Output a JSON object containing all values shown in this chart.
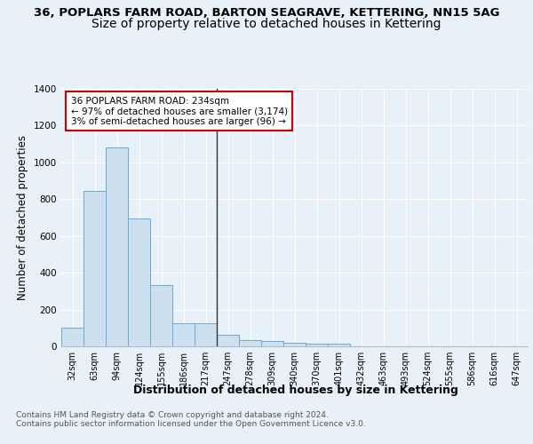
{
  "title_line1": "36, POPLARS FARM ROAD, BARTON SEAGRAVE, KETTERING, NN15 5AG",
  "title_line2": "Size of property relative to detached houses in Kettering",
  "xlabel": "Distribution of detached houses by size in Kettering",
  "ylabel": "Number of detached properties",
  "categories": [
    "32sqm",
    "63sqm",
    "94sqm",
    "124sqm",
    "155sqm",
    "186sqm",
    "217sqm",
    "247sqm",
    "278sqm",
    "309sqm",
    "340sqm",
    "370sqm",
    "401sqm",
    "432sqm",
    "463sqm",
    "493sqm",
    "524sqm",
    "555sqm",
    "586sqm",
    "616sqm",
    "647sqm"
  ],
  "values": [
    100,
    845,
    1080,
    693,
    335,
    125,
    125,
    65,
    33,
    28,
    18,
    14,
    14,
    0,
    0,
    0,
    0,
    0,
    0,
    0,
    0
  ],
  "bar_color": "#cce0f0",
  "bar_edge_color": "#6aaad4",
  "vline_x_idx": 7,
  "vline_color": "#333333",
  "annotation_text": "36 POPLARS FARM ROAD: 234sqm\n← 97% of detached houses are smaller (3,174)\n3% of semi-detached houses are larger (96) →",
  "annotation_box_color": "#ffffff",
  "annotation_box_edge": "#cc0000",
  "ylim": [
    0,
    1400
  ],
  "yticks": [
    0,
    200,
    400,
    600,
    800,
    1000,
    1200,
    1400
  ],
  "background_color": "#e8f0f8",
  "plot_background": "#e8f0f8",
  "grid_color": "#ffffff",
  "footnote": "Contains HM Land Registry data © Crown copyright and database right 2024.\nContains public sector information licensed under the Open Government Licence v3.0.",
  "title_fontsize": 9.5,
  "subtitle_fontsize": 10,
  "xlabel_fontsize": 9,
  "ylabel_fontsize": 8.5,
  "tick_fontsize": 7,
  "annot_fontsize": 7.5,
  "footnote_fontsize": 6.5
}
